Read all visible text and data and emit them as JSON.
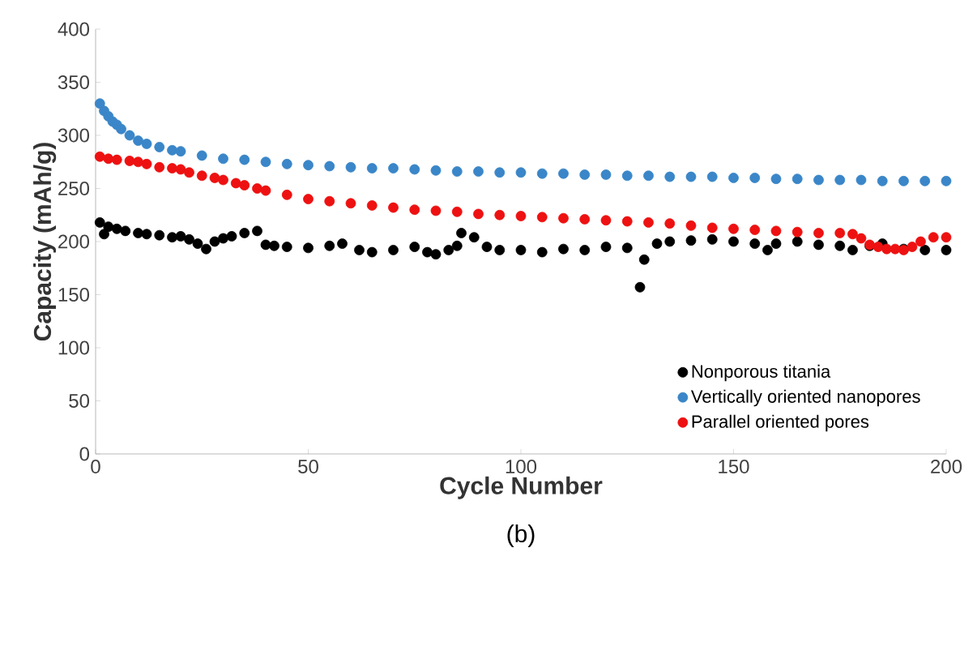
{
  "chart_data": {
    "type": "scatter",
    "xlabel": "Cycle Number",
    "ylabel": "Capacity (mAh/g)",
    "annotations": [
      "(b)"
    ],
    "xlim": [
      0,
      200
    ],
    "ylim": [
      0,
      400
    ],
    "xticks": [
      0,
      50,
      100,
      150,
      200
    ],
    "yticks": [
      0,
      50,
      100,
      150,
      200,
      250,
      300,
      350,
      400
    ],
    "grid": false,
    "legend": "bottom right",
    "marker": "circle",
    "series": [
      {
        "name": "Nonporous titania",
        "color": "#000000",
        "x": [
          1,
          2,
          3,
          5,
          7,
          10,
          12,
          15,
          18,
          20,
          22,
          24,
          26,
          28,
          30,
          32,
          35,
          38,
          40,
          42,
          45,
          50,
          55,
          58,
          62,
          65,
          70,
          75,
          78,
          80,
          83,
          85,
          86,
          89,
          92,
          95,
          100,
          105,
          110,
          115,
          120,
          125,
          128,
          129,
          132,
          135,
          140,
          145,
          150,
          155,
          158,
          160,
          165,
          170,
          175,
          178,
          182,
          185,
          190,
          195,
          200
        ],
        "values": [
          218,
          207,
          214,
          212,
          210,
          208,
          207,
          206,
          204,
          205,
          202,
          198,
          193,
          200,
          203,
          205,
          208,
          210,
          197,
          196,
          195,
          194,
          196,
          198,
          192,
          190,
          192,
          195,
          190,
          188,
          192,
          196,
          208,
          204,
          195,
          192,
          192,
          190,
          193,
          192,
          195,
          194,
          157,
          183,
          198,
          200,
          201,
          202,
          200,
          198,
          192,
          198,
          200,
          197,
          196,
          192,
          196,
          198,
          193,
          192,
          192
        ]
      },
      {
        "name": "Vertically oriented nanopores",
        "color": "#3a86c8",
        "x": [
          1,
          2,
          3,
          4,
          5,
          6,
          8,
          10,
          12,
          15,
          18,
          20,
          25,
          30,
          35,
          40,
          45,
          50,
          55,
          60,
          65,
          70,
          75,
          80,
          85,
          90,
          95,
          100,
          105,
          110,
          115,
          120,
          125,
          130,
          135,
          140,
          145,
          150,
          155,
          160,
          165,
          170,
          175,
          180,
          185,
          190,
          195,
          200
        ],
        "values": [
          330,
          323,
          318,
          313,
          310,
          306,
          300,
          295,
          292,
          289,
          286,
          285,
          281,
          278,
          277,
          275,
          273,
          272,
          271,
          270,
          269,
          269,
          268,
          267,
          266,
          266,
          265,
          265,
          264,
          264,
          263,
          263,
          262,
          262,
          261,
          261,
          261,
          260,
          260,
          259,
          259,
          258,
          258,
          258,
          257,
          257,
          257,
          257
        ]
      },
      {
        "name": "Parallel oriented pores",
        "color": "#ee1111",
        "x": [
          1,
          3,
          5,
          8,
          10,
          12,
          15,
          18,
          20,
          22,
          25,
          28,
          30,
          33,
          35,
          38,
          40,
          45,
          50,
          55,
          60,
          65,
          70,
          75,
          80,
          85,
          90,
          95,
          100,
          105,
          110,
          115,
          120,
          125,
          130,
          135,
          140,
          145,
          150,
          155,
          160,
          165,
          170,
          175,
          178,
          180,
          182,
          184,
          186,
          188,
          190,
          192,
          194,
          197,
          200
        ],
        "values": [
          280,
          278,
          277,
          276,
          275,
          273,
          270,
          269,
          268,
          265,
          262,
          260,
          258,
          255,
          253,
          250,
          248,
          244,
          240,
          238,
          236,
          234,
          232,
          230,
          229,
          228,
          226,
          225,
          224,
          223,
          222,
          221,
          220,
          219,
          218,
          217,
          215,
          213,
          212,
          211,
          210,
          209,
          208,
          208,
          207,
          203,
          197,
          195,
          193,
          193,
          192,
          195,
          200,
          204,
          204
        ]
      }
    ]
  }
}
